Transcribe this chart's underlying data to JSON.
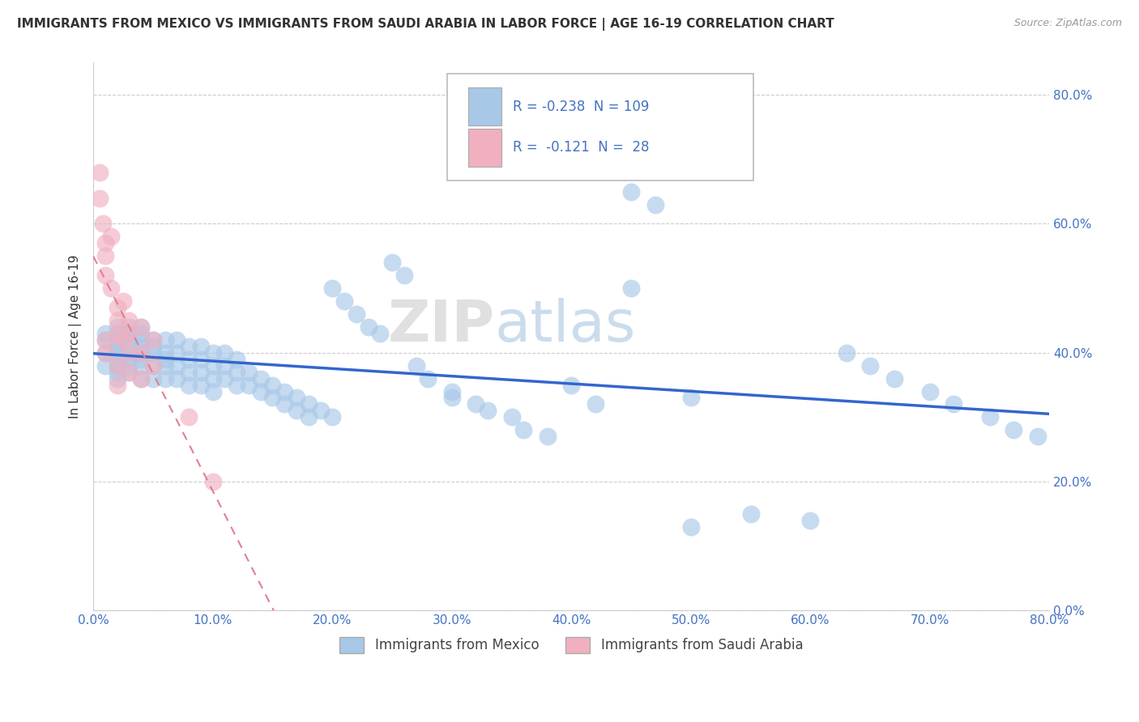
{
  "title": "IMMIGRANTS FROM MEXICO VS IMMIGRANTS FROM SAUDI ARABIA IN LABOR FORCE | AGE 16-19 CORRELATION CHART",
  "source": "Source: ZipAtlas.com",
  "ylabel": "In Labor Force | Age 16-19",
  "xlim": [
    0.0,
    0.8
  ],
  "ylim": [
    0.0,
    0.85
  ],
  "watermark": "ZIPatlas",
  "mexico_R": -0.238,
  "mexico_N": 109,
  "saudi_R": -0.121,
  "saudi_N": 28,
  "mexico_color": "#a8c8e8",
  "saudi_color": "#f0b0c0",
  "trendline_mexico_color": "#3366cc",
  "trendline_saudi_color": "#e08090",
  "background_color": "#ffffff",
  "grid_color": "#cccccc",
  "title_color": "#333333",
  "axis_label_color": "#333333",
  "tick_color": "#4472c4",
  "mexico_scatter_x": [
    0.01,
    0.01,
    0.01,
    0.01,
    0.02,
    0.02,
    0.02,
    0.02,
    0.02,
    0.02,
    0.02,
    0.02,
    0.02,
    0.02,
    0.03,
    0.03,
    0.03,
    0.03,
    0.03,
    0.03,
    0.03,
    0.03,
    0.04,
    0.04,
    0.04,
    0.04,
    0.04,
    0.04,
    0.04,
    0.04,
    0.05,
    0.05,
    0.05,
    0.05,
    0.05,
    0.06,
    0.06,
    0.06,
    0.06,
    0.06,
    0.07,
    0.07,
    0.07,
    0.07,
    0.08,
    0.08,
    0.08,
    0.08,
    0.09,
    0.09,
    0.09,
    0.09,
    0.1,
    0.1,
    0.1,
    0.1,
    0.11,
    0.11,
    0.11,
    0.12,
    0.12,
    0.12,
    0.13,
    0.13,
    0.14,
    0.14,
    0.15,
    0.15,
    0.16,
    0.16,
    0.17,
    0.17,
    0.18,
    0.18,
    0.19,
    0.2,
    0.2,
    0.21,
    0.22,
    0.23,
    0.24,
    0.25,
    0.26,
    0.27,
    0.28,
    0.3,
    0.3,
    0.32,
    0.33,
    0.35,
    0.36,
    0.38,
    0.4,
    0.42,
    0.45,
    0.47,
    0.5,
    0.55,
    0.6,
    0.63,
    0.65,
    0.67,
    0.7,
    0.72,
    0.75,
    0.77,
    0.79,
    0.45,
    0.5
  ],
  "mexico_scatter_y": [
    0.4,
    0.42,
    0.38,
    0.43,
    0.41,
    0.39,
    0.44,
    0.38,
    0.42,
    0.4,
    0.37,
    0.43,
    0.41,
    0.36,
    0.42,
    0.4,
    0.38,
    0.44,
    0.41,
    0.37,
    0.43,
    0.39,
    0.41,
    0.39,
    0.43,
    0.38,
    0.42,
    0.4,
    0.36,
    0.44,
    0.4,
    0.38,
    0.42,
    0.36,
    0.41,
    0.4,
    0.38,
    0.42,
    0.36,
    0.39,
    0.4,
    0.38,
    0.42,
    0.36,
    0.39,
    0.37,
    0.41,
    0.35,
    0.39,
    0.37,
    0.41,
    0.35,
    0.38,
    0.36,
    0.4,
    0.34,
    0.38,
    0.36,
    0.4,
    0.37,
    0.35,
    0.39,
    0.37,
    0.35,
    0.36,
    0.34,
    0.35,
    0.33,
    0.34,
    0.32,
    0.33,
    0.31,
    0.32,
    0.3,
    0.31,
    0.3,
    0.5,
    0.48,
    0.46,
    0.44,
    0.43,
    0.54,
    0.52,
    0.38,
    0.36,
    0.34,
    0.33,
    0.32,
    0.31,
    0.3,
    0.28,
    0.27,
    0.35,
    0.32,
    0.65,
    0.63,
    0.33,
    0.15,
    0.14,
    0.4,
    0.38,
    0.36,
    0.34,
    0.32,
    0.3,
    0.28,
    0.27,
    0.5,
    0.13
  ],
  "saudi_scatter_x": [
    0.005,
    0.005,
    0.008,
    0.01,
    0.01,
    0.01,
    0.01,
    0.01,
    0.015,
    0.015,
    0.02,
    0.02,
    0.02,
    0.02,
    0.02,
    0.025,
    0.025,
    0.03,
    0.03,
    0.03,
    0.03,
    0.04,
    0.04,
    0.04,
    0.05,
    0.05,
    0.08,
    0.1
  ],
  "saudi_scatter_y": [
    0.68,
    0.64,
    0.6,
    0.57,
    0.55,
    0.52,
    0.42,
    0.4,
    0.58,
    0.5,
    0.47,
    0.45,
    0.43,
    0.38,
    0.35,
    0.48,
    0.42,
    0.45,
    0.43,
    0.4,
    0.37,
    0.44,
    0.4,
    0.36,
    0.42,
    0.38,
    0.3,
    0.2
  ]
}
